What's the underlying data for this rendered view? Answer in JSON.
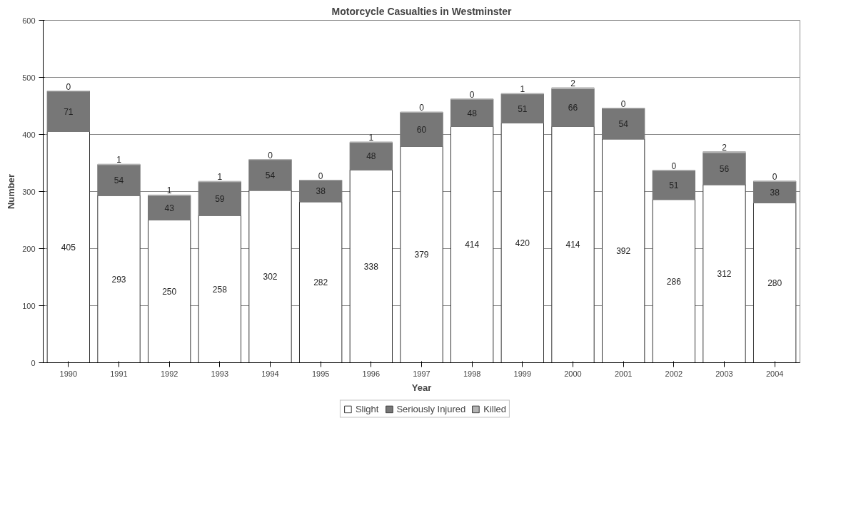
{
  "chart_data": {
    "type": "bar",
    "title": "Motorcycle Casualties in Westminster",
    "xlabel": "Year",
    "ylabel": "Number",
    "categories": [
      "1990",
      "1991",
      "1992",
      "1993",
      "1994",
      "1995",
      "1996",
      "1997",
      "1998",
      "1999",
      "2000",
      "2001",
      "2002",
      "2003",
      "2004"
    ],
    "stacked": true,
    "data_labels": true,
    "grid": "y",
    "legend": "bottom",
    "ylim": [
      0,
      600
    ],
    "yticks": [
      0,
      100,
      200,
      300,
      400,
      500,
      600
    ],
    "series": [
      {
        "name": "Slight",
        "color": "#ffffff",
        "values": [
          405,
          293,
          250,
          258,
          302,
          282,
          338,
          379,
          414,
          420,
          414,
          392,
          286,
          312,
          280
        ]
      },
      {
        "name": "Seriously Injured",
        "color": "#777777",
        "values": [
          71,
          54,
          43,
          59,
          54,
          38,
          48,
          60,
          48,
          51,
          66,
          54,
          51,
          56,
          38
        ]
      },
      {
        "name": "Killed",
        "color": "#b4b4b4",
        "values": [
          0,
          1,
          1,
          1,
          0,
          0,
          1,
          0,
          0,
          1,
          2,
          0,
          0,
          2,
          0
        ]
      }
    ]
  }
}
